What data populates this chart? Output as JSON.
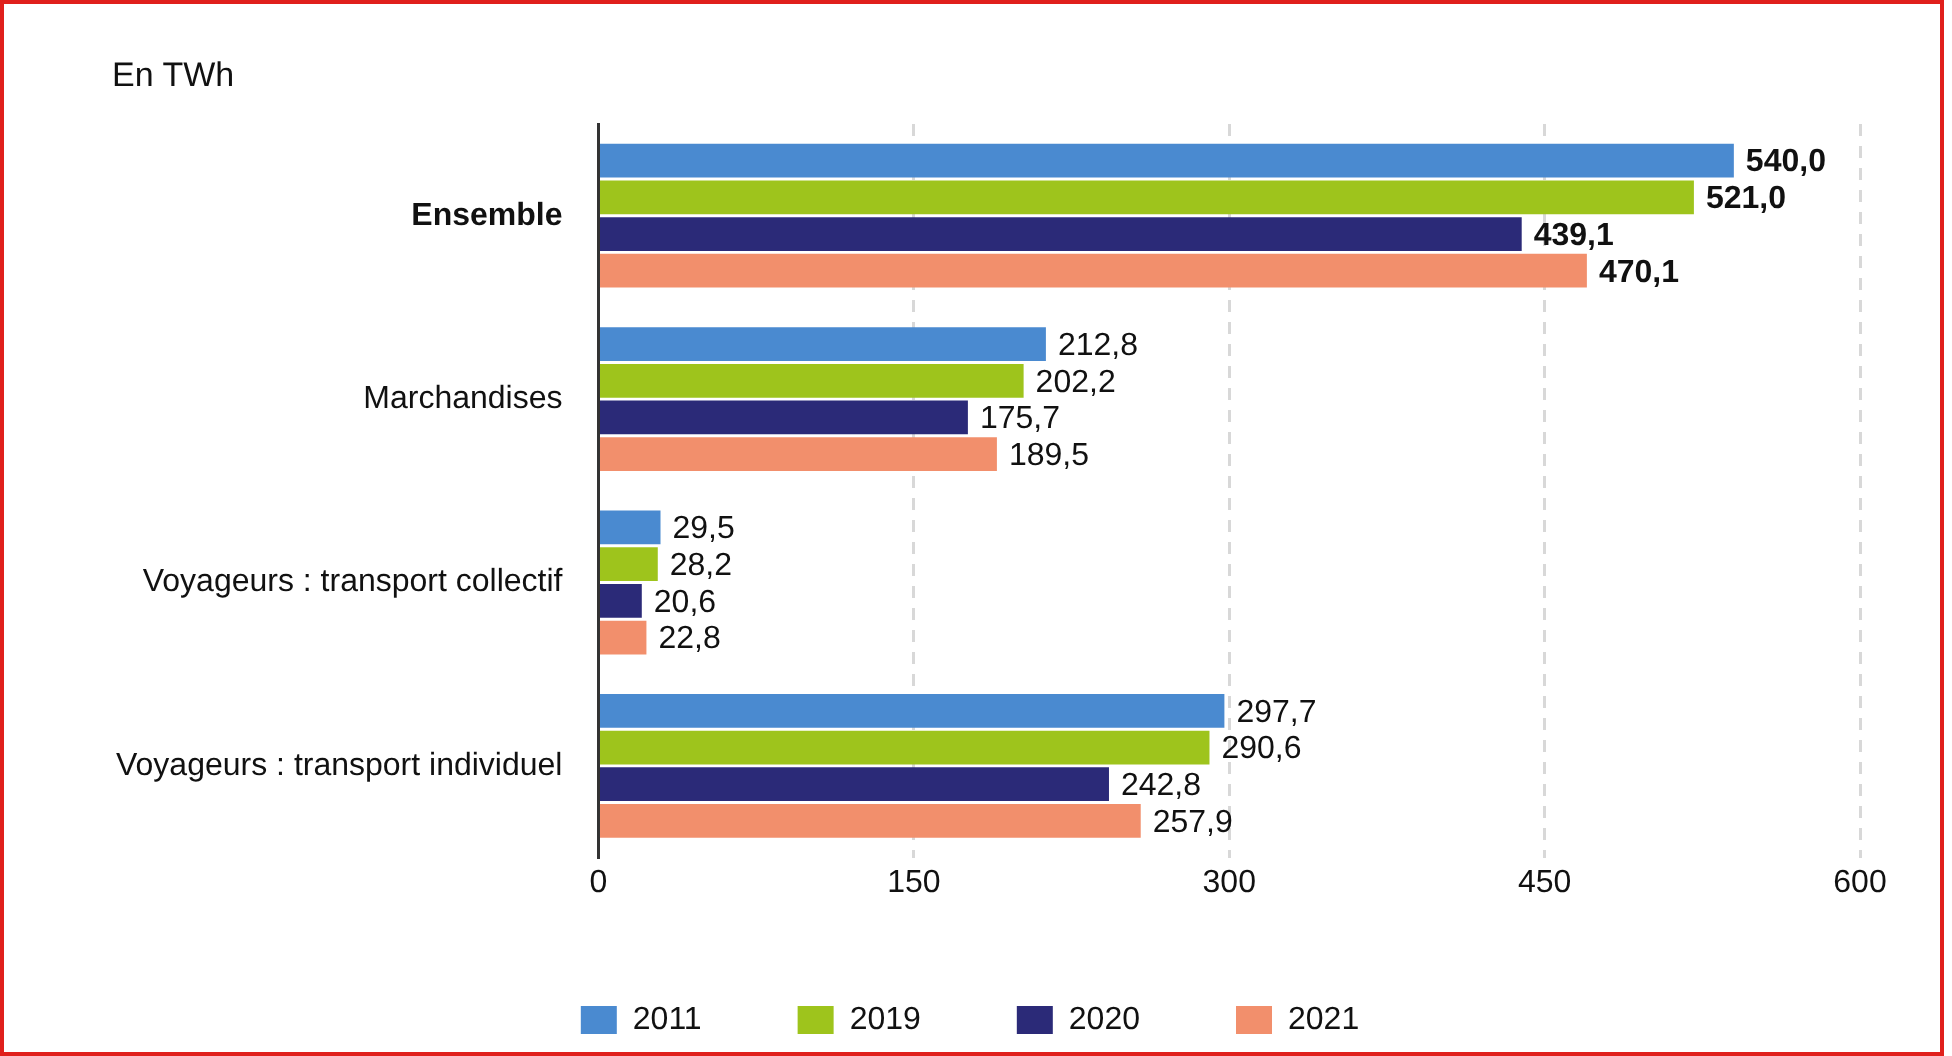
{
  "chart_data": {
    "type": "bar",
    "orientation": "horizontal",
    "title": "En TWh",
    "categories": [
      "Ensemble",
      "Marchandises",
      "Voyageurs : transport collectif",
      "Voyageurs : transport individuel"
    ],
    "series": [
      {
        "name": "2011",
        "color": "#4a8ad0",
        "values": [
          540.0,
          212.8,
          29.5,
          297.7
        ],
        "value_labels": [
          "540,0",
          "212,8",
          "29,5",
          "297,7"
        ]
      },
      {
        "name": "2019",
        "color": "#9ec41c",
        "values": [
          521.0,
          202.2,
          28.2,
          290.6
        ],
        "value_labels": [
          "521,0",
          "202,2",
          "28,2",
          "290,6"
        ]
      },
      {
        "name": "2020",
        "color": "#2b2a78",
        "values": [
          439.1,
          175.7,
          20.6,
          242.8
        ],
        "value_labels": [
          "439,1",
          "175,7",
          "20,6",
          "242,8"
        ]
      },
      {
        "name": "2021",
        "color": "#f28f6c",
        "values": [
          470.1,
          189.5,
          22.8,
          257.9
        ],
        "value_labels": [
          "470,1",
          "189,5",
          "22,8",
          "257,9"
        ]
      }
    ],
    "xlim": [
      0,
      600
    ],
    "xticks": [
      0,
      150,
      300,
      450,
      600
    ],
    "grid": "x",
    "legend": "bottom"
  }
}
